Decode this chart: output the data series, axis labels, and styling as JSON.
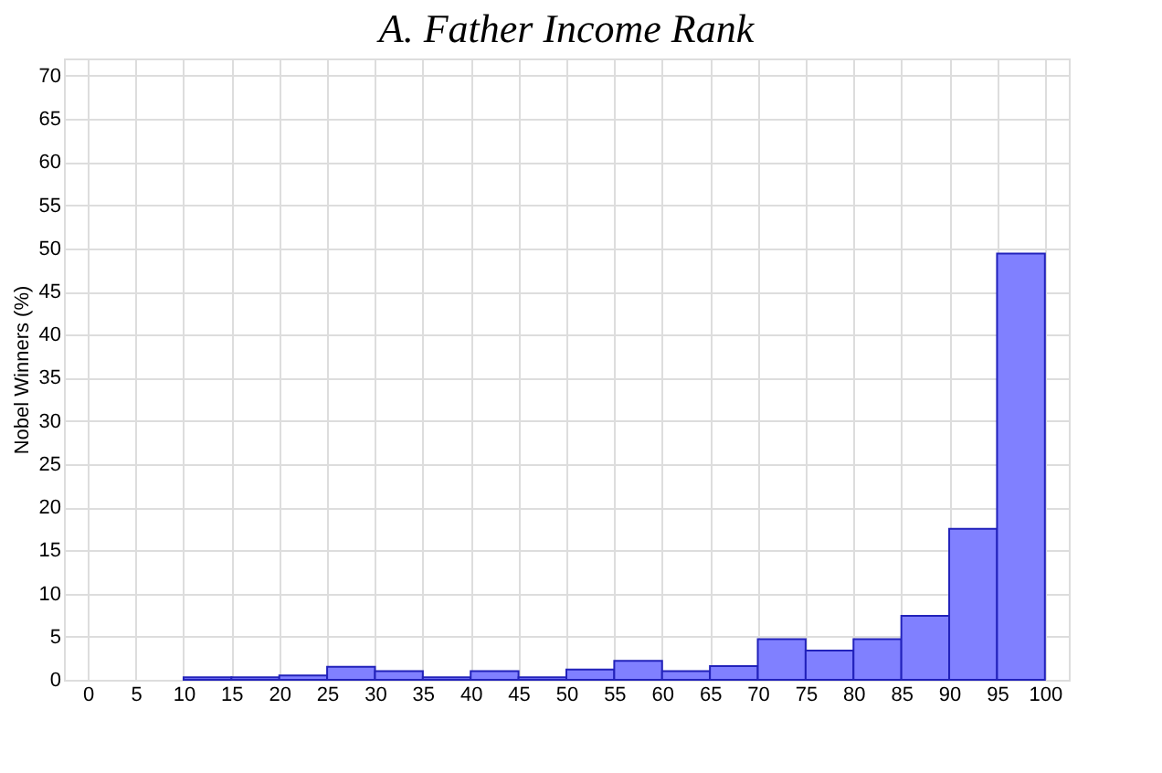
{
  "chart_data": {
    "type": "histogram",
    "title": "A. Father Income Rank",
    "ylabel": "Nobel Winners (%)",
    "bins": [
      0,
      5,
      10,
      15,
      20,
      25,
      30,
      35,
      40,
      45,
      50,
      55,
      60,
      65,
      70,
      75,
      80,
      85,
      90,
      95,
      100
    ],
    "values": [
      0,
      0,
      0.3,
      0.3,
      0.5,
      1.5,
      1.0,
      0.3,
      1.0,
      0.3,
      1.2,
      2.2,
      1.0,
      1.6,
      4.7,
      3.4,
      4.7,
      7.4,
      17.5,
      49.4
    ],
    "color": "#8080ff",
    "xlim": [
      -2.5,
      102.5
    ],
    "xticks": [
      0,
      5,
      10,
      15,
      20,
      25,
      30,
      35,
      40,
      45,
      50,
      55,
      60,
      65,
      70,
      75,
      80,
      85,
      90,
      95,
      100
    ],
    "ylim": [
      0,
      72
    ],
    "yticks": [
      0,
      5,
      10,
      15,
      20,
      25,
      30,
      35,
      40,
      45,
      50,
      55,
      60,
      65,
      70
    ],
    "grid": true
  }
}
